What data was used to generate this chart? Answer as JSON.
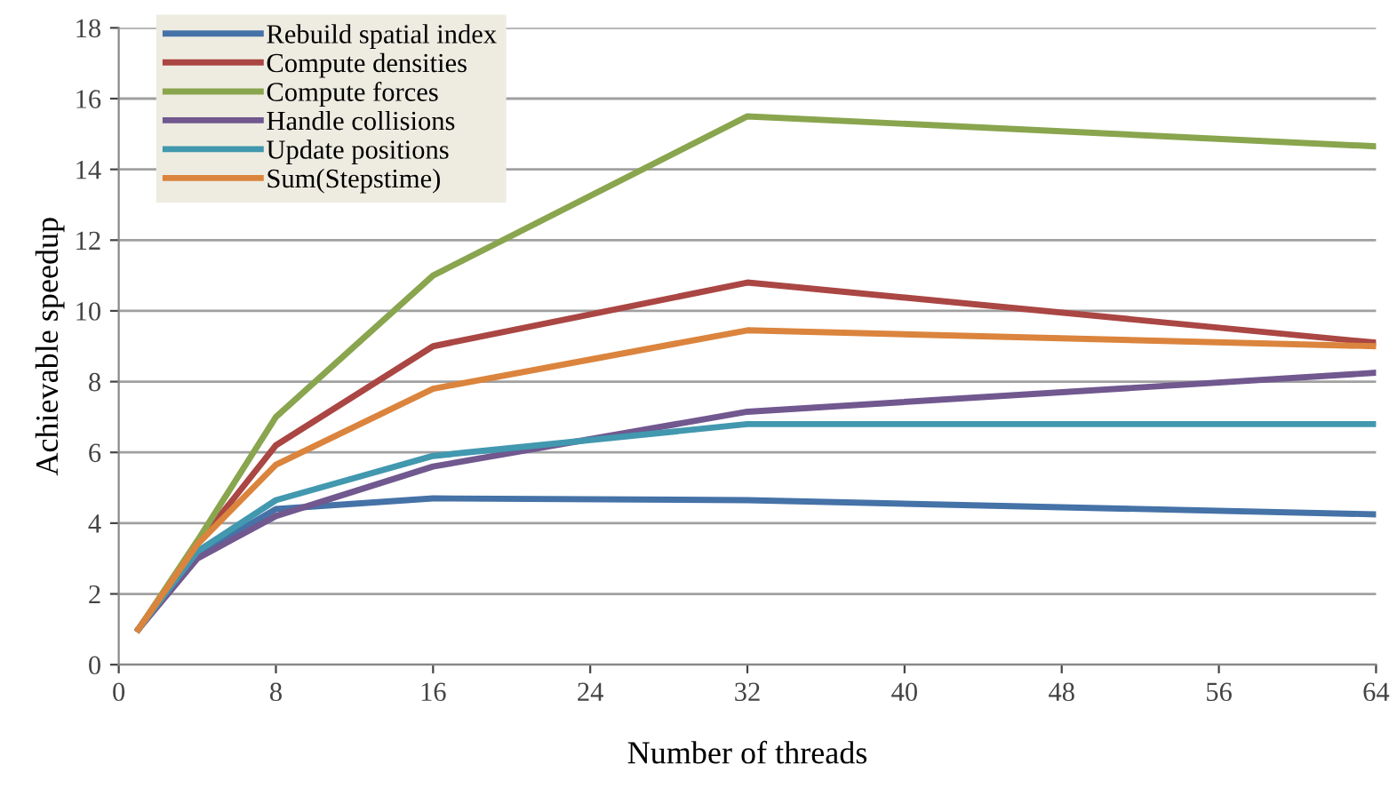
{
  "chart_data": {
    "type": "line",
    "xlabel": "Number of threads",
    "ylabel": "Achievable speedup",
    "x": [
      1,
      4,
      8,
      16,
      32,
      64
    ],
    "series": [
      {
        "name": "Rebuild spatial index",
        "color": "#4572a7",
        "values": [
          1,
          3.1,
          4.4,
          4.7,
          4.65,
          4.25
        ]
      },
      {
        "name": "Compute densities",
        "color": "#aa4643",
        "values": [
          1,
          3.4,
          6.2,
          9.0,
          10.8,
          9.1
        ]
      },
      {
        "name": "Compute forces",
        "color": "#89a54e",
        "values": [
          1,
          3.5,
          7.0,
          11.0,
          15.5,
          14.65
        ]
      },
      {
        "name": "Handle collisions",
        "color": "#71588f",
        "values": [
          1,
          3.0,
          4.2,
          5.6,
          7.15,
          8.25
        ]
      },
      {
        "name": "Update positions",
        "color": "#4198af",
        "values": [
          1,
          3.2,
          4.65,
          5.9,
          6.8,
          6.8
        ]
      },
      {
        "name": "Sum(Stepstime)",
        "color": "#db843d",
        "values": [
          1,
          3.4,
          5.65,
          7.8,
          9.45,
          9.0
        ]
      }
    ],
    "xlim": [
      0,
      64
    ],
    "xticks": [
      0,
      8,
      16,
      24,
      32,
      40,
      48,
      56,
      64
    ],
    "ylim": [
      0,
      18
    ],
    "yticks": [
      0,
      2,
      4,
      6,
      8,
      10,
      12,
      14,
      16,
      18
    ],
    "grid": "y",
    "legend": "top left",
    "marker": "none",
    "line_style": "solid"
  }
}
